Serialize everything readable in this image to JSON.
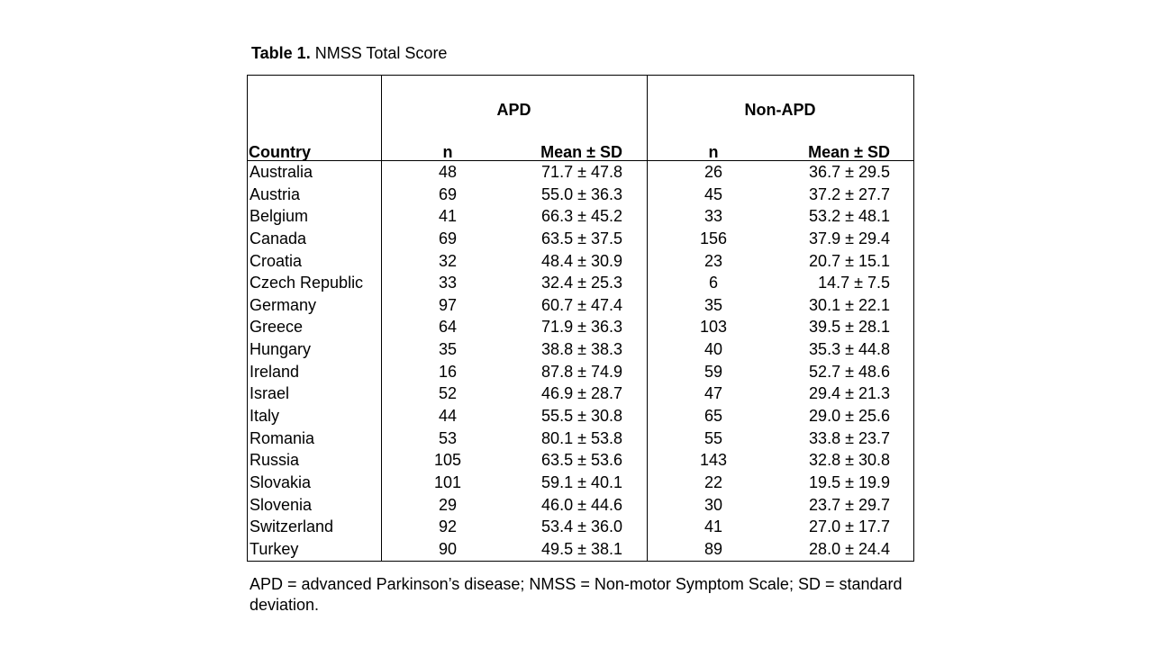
{
  "caption": {
    "label": "Table 1.",
    "title": "NMSS Total Score"
  },
  "groups": {
    "apd": "APD",
    "non_apd": "Non-APD"
  },
  "columns": {
    "country": "Country",
    "n": "n",
    "mean_sd": "Mean ± SD"
  },
  "rows": [
    {
      "country": "Australia",
      "apd_n": "48",
      "apd_mean": "71.7 ± 47.8",
      "non_n": "26",
      "non_mean": "36.7 ± 29.5"
    },
    {
      "country": "Austria",
      "apd_n": "69",
      "apd_mean": "55.0 ± 36.3",
      "non_n": "45",
      "non_mean": "37.2 ± 27.7"
    },
    {
      "country": "Belgium",
      "apd_n": "41",
      "apd_mean": "66.3 ± 45.2",
      "non_n": "33",
      "non_mean": "53.2 ± 48.1"
    },
    {
      "country": "Canada",
      "apd_n": "69",
      "apd_mean": "63.5 ± 37.5",
      "non_n": "156",
      "non_mean": "37.9 ± 29.4"
    },
    {
      "country": "Croatia",
      "apd_n": "32",
      "apd_mean": "48.4 ± 30.9",
      "non_n": "23",
      "non_mean": "20.7 ± 15.1"
    },
    {
      "country": "Czech Republic",
      "apd_n": "33",
      "apd_mean": "32.4 ± 25.3",
      "non_n": "6",
      "non_mean": "14.7 ± 7.5"
    },
    {
      "country": "Germany",
      "apd_n": "97",
      "apd_mean": "60.7 ± 47.4",
      "non_n": "35",
      "non_mean": "30.1 ± 22.1"
    },
    {
      "country": "Greece",
      "apd_n": "64",
      "apd_mean": "71.9 ± 36.3",
      "non_n": "103",
      "non_mean": "39.5 ± 28.1"
    },
    {
      "country": "Hungary",
      "apd_n": "35",
      "apd_mean": "38.8 ± 38.3",
      "non_n": "40",
      "non_mean": "35.3 ± 44.8"
    },
    {
      "country": "Ireland",
      "apd_n": "16",
      "apd_mean": "87.8 ± 74.9",
      "non_n": "59",
      "non_mean": "52.7 ± 48.6"
    },
    {
      "country": "Israel",
      "apd_n": "52",
      "apd_mean": "46.9 ± 28.7",
      "non_n": "47",
      "non_mean": "29.4 ± 21.3"
    },
    {
      "country": "Italy",
      "apd_n": "44",
      "apd_mean": "55.5 ± 30.8",
      "non_n": "65",
      "non_mean": "29.0 ± 25.6"
    },
    {
      "country": "Romania",
      "apd_n": "53",
      "apd_mean": "80.1 ± 53.8",
      "non_n": "55",
      "non_mean": "33.8 ± 23.7"
    },
    {
      "country": "Russia",
      "apd_n": "105",
      "apd_mean": "63.5 ± 53.6",
      "non_n": "143",
      "non_mean": "32.8 ± 30.8"
    },
    {
      "country": "Slovakia",
      "apd_n": "101",
      "apd_mean": "59.1 ± 40.1",
      "non_n": "22",
      "non_mean": "19.5 ± 19.9"
    },
    {
      "country": "Slovenia",
      "apd_n": "29",
      "apd_mean": "46.0 ± 44.6",
      "non_n": "30",
      "non_mean": "23.7 ± 29.7"
    },
    {
      "country": "Switzerland",
      "apd_n": "92",
      "apd_mean": "53.4 ± 36.0",
      "non_n": "41",
      "non_mean": "27.0 ± 17.7"
    },
    {
      "country": "Turkey",
      "apd_n": "90",
      "apd_mean": "49.5 ± 38.1",
      "non_n": "89",
      "non_mean": "28.0 ± 24.4"
    }
  ],
  "footnote": "APD = advanced Parkinson’s disease; NMSS = Non-motor Symptom Scale; SD = standard deviation."
}
